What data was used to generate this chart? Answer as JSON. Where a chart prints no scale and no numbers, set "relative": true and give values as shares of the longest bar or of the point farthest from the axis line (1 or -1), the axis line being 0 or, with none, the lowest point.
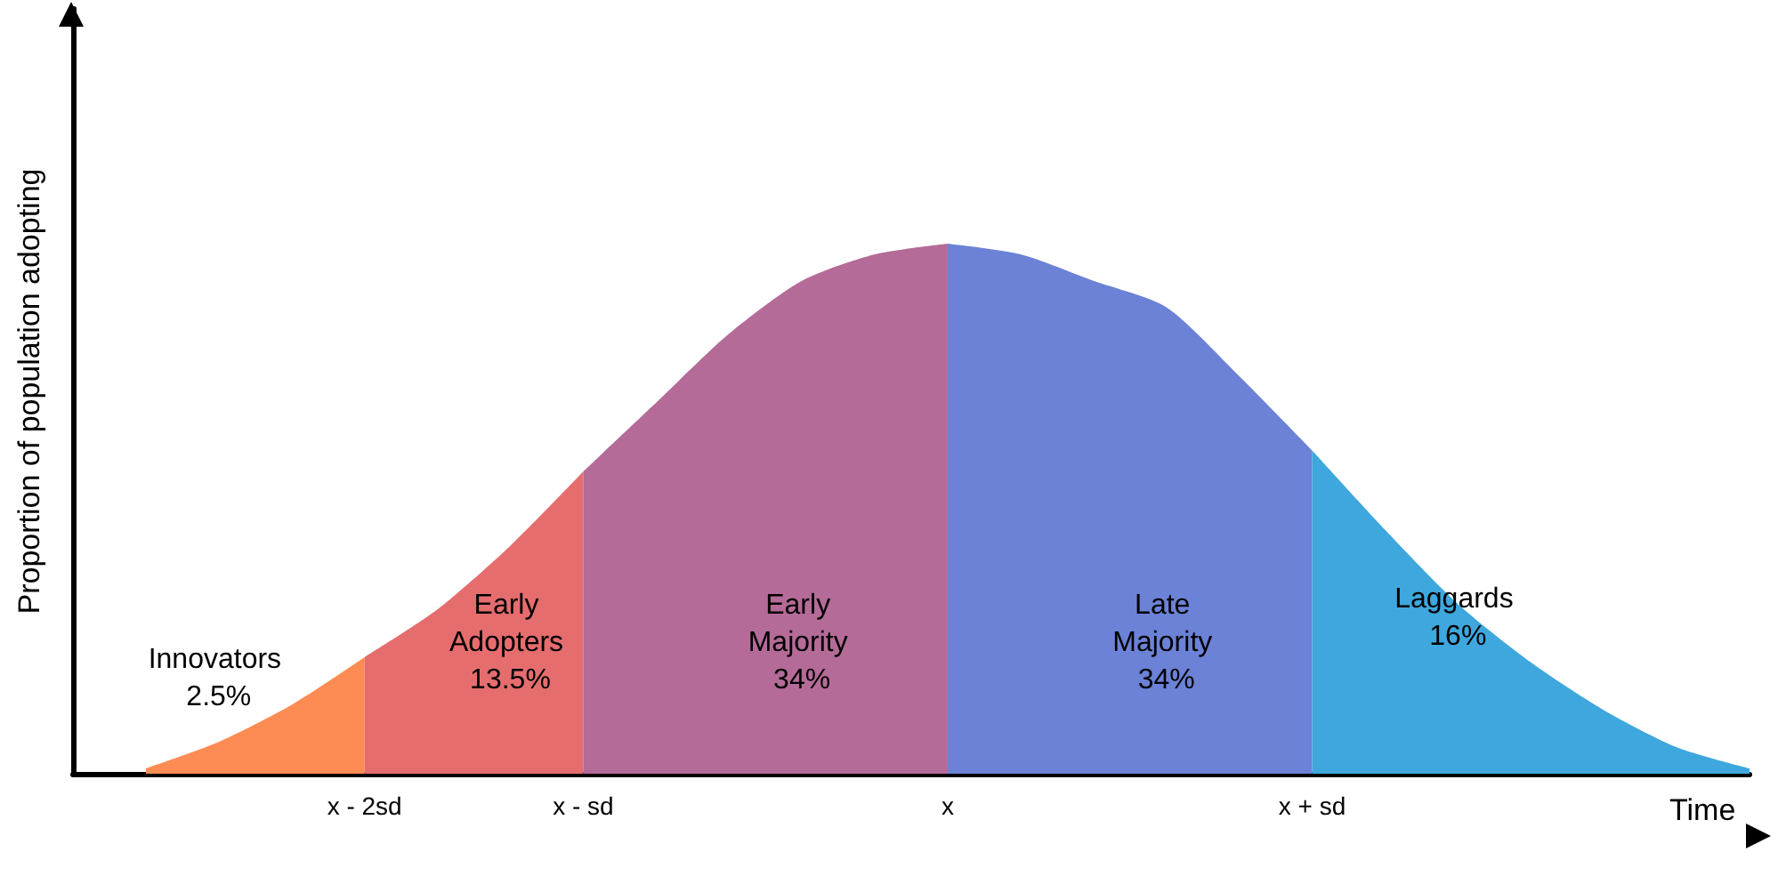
{
  "chart_data": {
    "type": "area",
    "relative": true,
    "xlabel": "Time",
    "ylabel": "Proportion of population adopting",
    "categories": [
      null,
      null,
      null,
      null,
      "x - 2sd",
      null,
      null,
      "x - sd",
      null,
      null,
      null,
      null,
      "x",
      null,
      null,
      null,
      null,
      "x + sd",
      null,
      null,
      null,
      null,
      null,
      null
    ],
    "series": [
      {
        "name": "Innovators 2.5%",
        "color": "#fd8c54",
        "values": [
          null,
          0.01,
          0.06,
          0.13,
          0.22,
          null,
          null,
          null,
          null,
          null,
          null,
          null,
          null,
          null,
          null,
          null,
          null,
          null,
          null,
          null,
          null,
          null,
          null,
          null
        ]
      },
      {
        "name": "Early Adopters 13.5%",
        "color": "#e56d6e",
        "values": [
          null,
          null,
          null,
          null,
          0.22,
          0.31,
          0.43,
          0.57,
          null,
          null,
          null,
          null,
          null,
          null,
          null,
          null,
          null,
          null,
          null,
          null,
          null,
          null,
          null,
          null
        ]
      },
      {
        "name": "Early Majority 34%",
        "color": "#b46b98",
        "values": [
          null,
          null,
          null,
          null,
          null,
          null,
          null,
          0.57,
          0.7,
          0.83,
          0.93,
          0.98,
          1,
          null,
          null,
          null,
          null,
          null,
          null,
          null,
          null,
          null,
          null,
          null
        ]
      },
      {
        "name": "Late Majority 34%",
        "color": "#6b82d6",
        "values": [
          null,
          null,
          null,
          null,
          null,
          null,
          null,
          null,
          null,
          null,
          null,
          null,
          1,
          0.98,
          0.93,
          0.88,
          0.75,
          0.61,
          null,
          null,
          null,
          null,
          null,
          null
        ]
      },
      {
        "name": "Laggards 16%",
        "color": "#3ea7dd",
        "values": [
          null,
          null,
          null,
          null,
          null,
          null,
          null,
          null,
          null,
          null,
          null,
          null,
          null,
          null,
          null,
          null,
          null,
          0.61,
          0.46,
          0.32,
          0.21,
          0.12,
          0.05,
          0.01
        ]
      }
    ]
  }
}
